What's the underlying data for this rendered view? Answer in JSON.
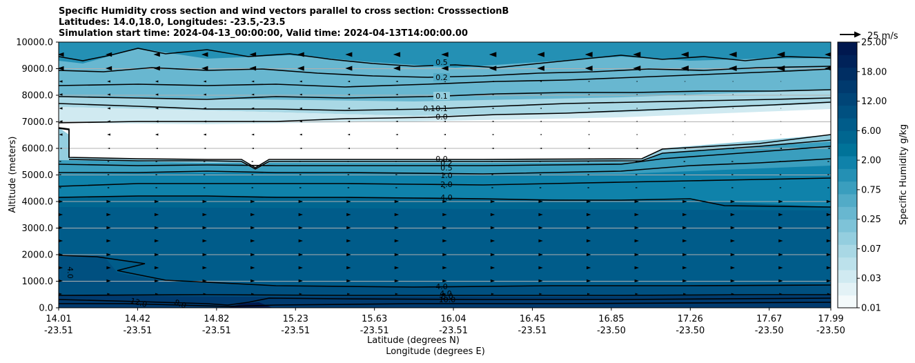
{
  "chart_data": {
    "type": "heatmap",
    "title": [
      "Specific Humidity cross section and wind vectors parallel to cross section: CrosssectionB",
      "Latitudes: 14.0,18.0, Longitudes: -23.5,-23.5",
      "Simulation start time: 2024-04-13_00:00:00, Valid time: 2024-04-13T14:00:00.00"
    ],
    "ylabel": "Altitude (meters)",
    "xlabel": "Latitude (degrees N)",
    "xlabel2": "Longitude (degrees E)",
    "ylim": [
      0,
      10000
    ],
    "y_ticks": [
      "0.0",
      "1000.0",
      "2000.0",
      "3000.0",
      "4000.0",
      "5000.0",
      "6000.0",
      "7000.0",
      "8000.0",
      "9000.0",
      "10000.0"
    ],
    "x_ticks": [
      {
        "lat": "14.01",
        "lon": "-23.51"
      },
      {
        "lat": "14.42",
        "lon": "-23.51"
      },
      {
        "lat": "14.82",
        "lon": "-23.51"
      },
      {
        "lat": "15.23",
        "lon": "-23.51"
      },
      {
        "lat": "15.63",
        "lon": "-23.51"
      },
      {
        "lat": "16.04",
        "lon": "-23.51"
      },
      {
        "lat": "16.45",
        "lon": "-23.51"
      },
      {
        "lat": "16.85",
        "lon": "-23.50"
      },
      {
        "lat": "17.26",
        "lon": "-23.50"
      },
      {
        "lat": "17.67",
        "lon": "-23.50"
      },
      {
        "lat": "17.99",
        "lon": "-23.50"
      }
    ],
    "grid": "horizontal",
    "colorbar": {
      "label": "Specific Humidity g/kg",
      "tick_labels": [
        "0.01",
        "0.03",
        "0.07",
        "0.25",
        "0.75",
        "2.00",
        "6.00",
        "12.00",
        "18.00",
        "25.00"
      ],
      "colors": [
        "#f4fafb",
        "#e3f2f6",
        "#d0eaf1",
        "#bce1eb",
        "#a9d8e5",
        "#94cedf",
        "#7ec3d8",
        "#68b7d0",
        "#52abc7",
        "#3a9ebe",
        "#2490b4",
        "#0f82aa",
        "#007399",
        "#006690",
        "#005c8a",
        "#005080",
        "#004577",
        "#003a6e",
        "#002e63",
        "#002259",
        "#00184f"
      ]
    },
    "contour_labels": [
      "0.5",
      "0.2",
      "0.1",
      "0.1",
      "0.1",
      "0.0",
      "0.0",
      "0.2",
      "0.5",
      "1.0",
      "2.0",
      "4.0",
      "4.0",
      "4.0",
      "8.0",
      "12.0",
      "10.0",
      "8.0",
      "4.0"
    ],
    "quiver_key": "25 m/s"
  }
}
